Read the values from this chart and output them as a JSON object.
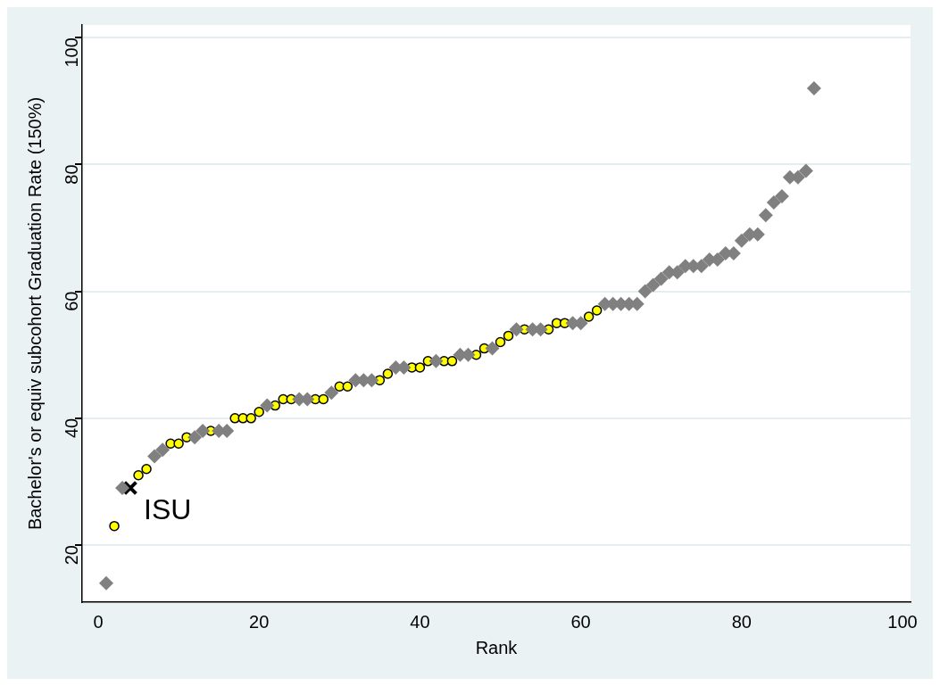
{
  "chart_data": {
    "type": "scatter",
    "xlabel": "Rank",
    "ylabel": "Bachelor's or equiv subcohort Graduation Rate (150%)",
    "xlim": [
      -2,
      101
    ],
    "xticks": [
      0,
      20,
      40,
      60,
      80,
      100
    ],
    "ylim": [
      11,
      102
    ],
    "yticks": [
      20,
      40,
      60,
      80,
      100
    ],
    "grid": "y",
    "legend": false,
    "series": [
      {
        "color": "#808080",
        "marker": "diamond",
        "x": [
          1,
          3,
          7,
          8,
          12,
          13,
          15,
          16,
          21,
          25,
          26,
          29,
          32,
          33,
          34,
          37,
          38,
          42,
          45,
          46,
          49,
          52,
          54,
          55,
          59,
          60,
          63,
          64,
          65,
          66,
          67,
          68,
          69,
          70,
          71,
          72,
          73,
          74,
          75,
          76,
          77,
          78,
          79,
          80,
          81,
          82,
          83,
          84,
          85,
          86,
          87,
          88,
          89
        ],
        "values": [
          14,
          29,
          34,
          35,
          37,
          38,
          38,
          38,
          42,
          43,
          43,
          44,
          46,
          46,
          46,
          48,
          48,
          49,
          50,
          50,
          51,
          54,
          54,
          54,
          55,
          55,
          58,
          58,
          58,
          58,
          58,
          60,
          61,
          62,
          63,
          63,
          64,
          64,
          64,
          65,
          65,
          66,
          66,
          68,
          69,
          69,
          72,
          74,
          75,
          78,
          78,
          79,
          92
        ]
      },
      {
        "color": "#ffff00",
        "marker": "circle",
        "x": [
          2,
          5,
          6,
          9,
          10,
          11,
          14,
          17,
          18,
          19,
          20,
          22,
          23,
          24,
          27,
          28,
          30,
          31,
          35,
          36,
          39,
          40,
          41,
          43,
          44,
          47,
          48,
          50,
          51,
          53,
          56,
          57,
          58,
          61,
          62
        ],
        "values": [
          23,
          31,
          32,
          36,
          36,
          37,
          38,
          40,
          40,
          40,
          41,
          42,
          43,
          43,
          43,
          43,
          45,
          45,
          46,
          47,
          48,
          48,
          49,
          49,
          49,
          50,
          51,
          52,
          53,
          54,
          54,
          55,
          55,
          56,
          57
        ]
      },
      {
        "color": "#000000",
        "marker": "cross",
        "x": [
          4
        ],
        "values": [
          29
        ]
      }
    ],
    "annotations": [
      {
        "text": "ISU",
        "x": 4,
        "y": 29
      }
    ]
  }
}
